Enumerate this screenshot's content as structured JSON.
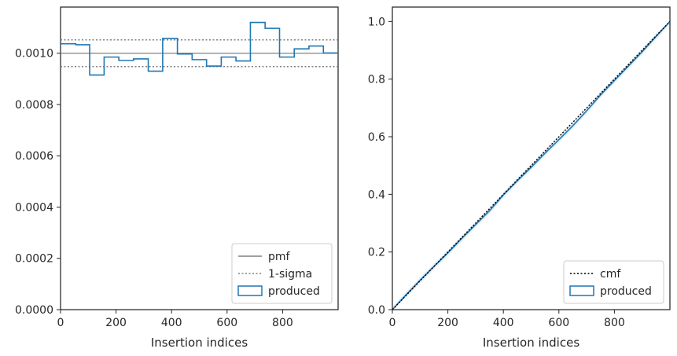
{
  "chart_data": [
    {
      "type": "histogram",
      "xlabel": "Insertion indices",
      "ylabel": "",
      "xlim": [
        0,
        1000
      ],
      "ylim": [
        0,
        0.00118
      ],
      "xticks": [
        0,
        200,
        400,
        600,
        800
      ],
      "yticks": [
        0,
        0.0002,
        0.0004,
        0.0006,
        0.0008,
        0.001
      ],
      "ytick_labels": [
        "0.0000",
        "0.0002",
        "0.0004",
        "0.0006",
        "0.0008",
        "0.0010"
      ],
      "bin_edges": [
        0,
        105,
        157,
        210,
        263,
        316,
        368,
        421,
        474,
        526,
        579,
        632,
        684,
        737,
        789,
        842,
        895,
        947,
        1000
      ],
      "values": [
        0.001035,
        0.000915,
        0.000985,
        0.000972,
        0.000978,
        0.00093,
        0.001058,
        0.000997,
        0.000975,
        0.00095,
        0.000985,
        0.00097,
        0.00112,
        0.001097,
        0.000985,
        0.001017,
        0.001028,
        0.001001
      ],
      "first_bin_steps": [
        {
          "x": [
            0,
            55
          ],
          "y": 0.001037
        },
        {
          "x": [
            55,
            105
          ],
          "y": 0.001033
        }
      ],
      "pmf": 0.001,
      "sigma_band": [
        0.000948,
        0.001052
      ],
      "legend": {
        "position": "lower-right",
        "entries": [
          {
            "label": "pmf",
            "style": "solid",
            "color": "#808080"
          },
          {
            "label": "1-sigma",
            "style": "dotted",
            "color": "#808080"
          },
          {
            "label": "produced",
            "style": "patch",
            "color": "#1f77b4"
          }
        ]
      }
    },
    {
      "type": "line",
      "xlabel": "Insertion indices",
      "ylabel": "",
      "xlim": [
        0,
        1000
      ],
      "ylim": [
        0,
        1.05
      ],
      "xticks": [
        0,
        200,
        400,
        600,
        800
      ],
      "yticks": [
        0,
        0.2,
        0.4,
        0.6,
        0.8,
        1.0
      ],
      "ytick_labels": [
        "0.0",
        "0.2",
        "0.4",
        "0.6",
        "0.8",
        "1.0"
      ],
      "cmf": {
        "x": [
          0,
          1000
        ],
        "y": [
          0,
          1
        ]
      },
      "produced": {
        "x": [
          0,
          50,
          100,
          150,
          200,
          250,
          300,
          350,
          400,
          450,
          500,
          550,
          600,
          650,
          700,
          750,
          800,
          850,
          900,
          950,
          1000
        ],
        "y": [
          0,
          0.052,
          0.102,
          0.15,
          0.197,
          0.247,
          0.295,
          0.343,
          0.398,
          0.447,
          0.494,
          0.543,
          0.59,
          0.638,
          0.69,
          0.745,
          0.795,
          0.845,
          0.895,
          0.948,
          1.0
        ]
      },
      "legend": {
        "position": "lower-right",
        "entries": [
          {
            "label": "cmf",
            "style": "dotted",
            "color": "#000000"
          },
          {
            "label": "produced",
            "style": "patch",
            "color": "#1f77b4"
          }
        ]
      }
    }
  ]
}
